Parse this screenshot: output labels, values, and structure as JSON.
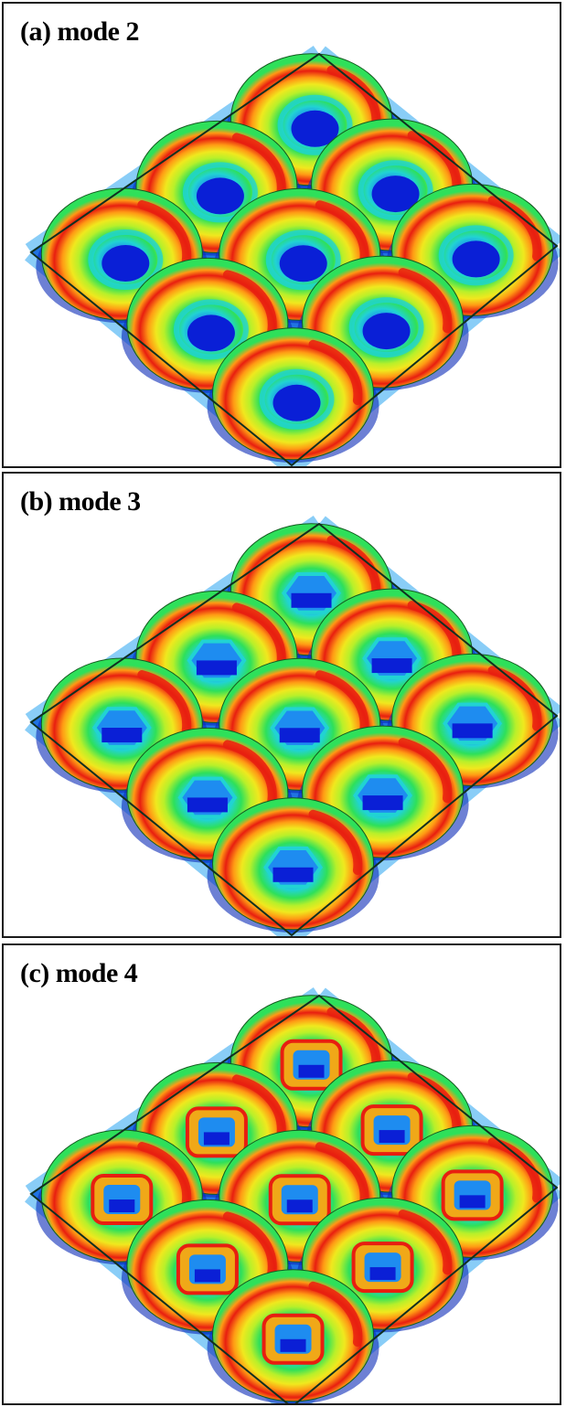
{
  "figure": {
    "panels": [
      {
        "id": "a",
        "label": "(a) mode 2",
        "mode": 2,
        "pit_shape": "circular",
        "rings": 1
      },
      {
        "id": "b",
        "label": "(b) mode 3",
        "mode": 3,
        "pit_shape": "hexagonal",
        "rings": 1
      },
      {
        "id": "c",
        "label": "(c) mode 4",
        "mode": 4,
        "pit_shape": "square",
        "rings": 2
      }
    ],
    "lattice": {
      "rows": 3,
      "cols": 3,
      "surface": "square-lattice"
    },
    "colormap": [
      "#0a1fd6",
      "#1e8cf0",
      "#21d3d3",
      "#2ee05a",
      "#b8f02a",
      "#f0e81e",
      "#ff9a14",
      "#e81e10"
    ],
    "colors": {
      "frame": "#1a1a1a",
      "background": "#ffffff",
      "base": "#1436d2",
      "edge": "#103020"
    }
  }
}
